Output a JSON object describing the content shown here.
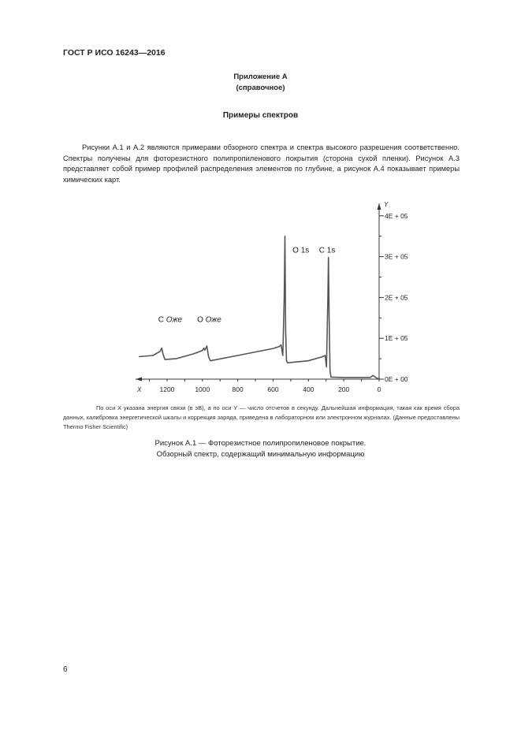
{
  "header": {
    "doc_id": "ГОСТ Р ИСО 16243—2016"
  },
  "annex": {
    "title": "Приложение А",
    "type": "(справочное)"
  },
  "section_title": "Примеры спектров",
  "paragraph": "Рисунки А.1 и А.2 являются примерами обзорного спектра и спектра высокого разрешения соответственно. Спектры получены для фоторезистного полипропиленового покрытия (сторона сухой пленки). Рисунок А.3 представляет собой пример профилей распределения элементов по глубине, а рисунок А.4 показывает примеры химических карт.",
  "chart_data": {
    "type": "line",
    "xlabel": "X",
    "ylabel": "Y",
    "xlim": [
      1360,
      0
    ],
    "x_reversed": true,
    "ylim": [
      0,
      400000
    ],
    "x_ticks": [
      1200,
      1000,
      800,
      600,
      400,
      200,
      0
    ],
    "y_ticks": [
      "0E + 00",
      "1E + 05",
      "2E + 05",
      "3E + 05",
      "4E + 05"
    ],
    "y_tick_values": [
      0,
      100000,
      200000,
      300000,
      400000
    ],
    "grid": false,
    "line_color": "#555555",
    "annotations": [
      {
        "text": "C ",
        "italic": "Оже",
        "x": 1250,
        "y": 140000
      },
      {
        "text": "O ",
        "italic": "Оже",
        "x": 1030,
        "y": 140000
      },
      {
        "text": "O 1s",
        "italic": "",
        "x": 490,
        "y": 310000
      },
      {
        "text": "C 1s",
        "italic": "",
        "x": 340,
        "y": 310000
      }
    ],
    "series": [
      {
        "x": [
          1360,
          1280,
          1240,
          1230,
          1222,
          1212,
          1150,
          1050,
          1000,
          992,
          986,
          975,
          965,
          955,
          800,
          600,
          565,
          555,
          545,
          537,
          533,
          529,
          524,
          518,
          400,
          320,
          305,
          298,
          290,
          287,
          283,
          278,
          272,
          200,
          50,
          35,
          25,
          10,
          0
        ],
        "y": [
          55000,
          58000,
          68000,
          76000,
          60000,
          48000,
          50000,
          62000,
          70000,
          76000,
          71000,
          81000,
          55000,
          45000,
          58000,
          75000,
          80000,
          84000,
          58000,
          200000,
          350000,
          120000,
          45000,
          40000,
          45000,
          55000,
          58000,
          30000,
          200000,
          298000,
          150000,
          20000,
          5000,
          4000,
          4000,
          9000,
          6000,
          2000,
          1000
        ]
      }
    ]
  },
  "figure_note": "По оси X указана энергия связи (в эВ), а по оси Y — число отсчетов в секунду. Дальнейшая информация, такая как время сбора данных, калибровка энергетической шкалы и коррекция заряда, приведена в лабораторном или электронном журналах. (Данные предоставлены Thermo Fisher Scientific)",
  "figure_caption": {
    "line1": "Рисунок А.1 — Фоторезистное полипропиленовое покрытие.",
    "line2": "Обзорный спектр, содержащий минимальную информацию"
  },
  "page_number": "6"
}
